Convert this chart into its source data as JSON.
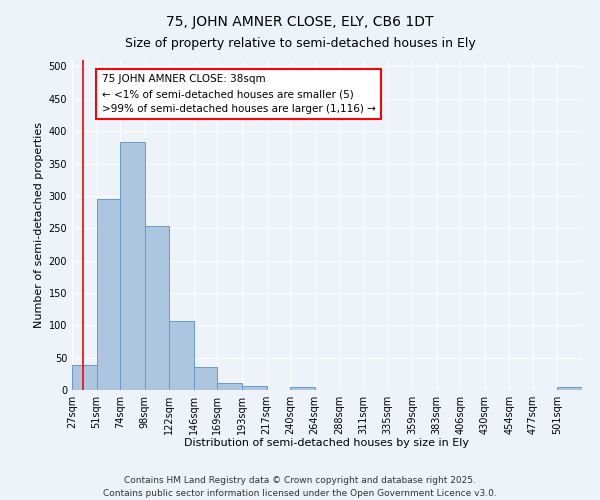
{
  "title": "75, JOHN AMNER CLOSE, ELY, CB6 1DT",
  "subtitle": "Size of property relative to semi-detached houses in Ely",
  "xlabel": "Distribution of semi-detached houses by size in Ely",
  "ylabel": "Number of semi-detached properties",
  "footer_line1": "Contains HM Land Registry data © Crown copyright and database right 2025.",
  "footer_line2": "Contains public sector information licensed under the Open Government Licence v3.0.",
  "annotation_line1": "75 JOHN AMNER CLOSE: 38sqm",
  "annotation_line2": "← <1% of semi-detached houses are smaller (5)",
  "annotation_line3": ">99% of semi-detached houses are larger (1,116) →",
  "bin_labels": [
    "27sqm",
    "51sqm",
    "74sqm",
    "98sqm",
    "122sqm",
    "146sqm",
    "169sqm",
    "193sqm",
    "217sqm",
    "240sqm",
    "264sqm",
    "288sqm",
    "311sqm",
    "335sqm",
    "359sqm",
    "383sqm",
    "406sqm",
    "430sqm",
    "454sqm",
    "477sqm",
    "501sqm"
  ],
  "bin_edges": [
    27,
    51,
    74,
    98,
    122,
    146,
    169,
    193,
    217,
    240,
    264,
    288,
    311,
    335,
    359,
    383,
    406,
    430,
    454,
    477,
    501,
    525
  ],
  "bar_heights": [
    38,
    295,
    383,
    254,
    107,
    36,
    11,
    6,
    0,
    5,
    0,
    0,
    0,
    0,
    0,
    0,
    0,
    0,
    0,
    0,
    4
  ],
  "bar_color": "#adc6e0",
  "bar_edgecolor": "#6699cc",
  "redline_x": 38,
  "ylim": [
    0,
    510
  ],
  "yticks": [
    0,
    50,
    100,
    150,
    200,
    250,
    300,
    350,
    400,
    450,
    500
  ],
  "background_color": "#eef2f9",
  "grid_color": "#ffffff",
  "title_fontsize": 10,
  "subtitle_fontsize": 9,
  "axis_label_fontsize": 8,
  "tick_fontsize": 7,
  "annotation_fontsize": 7.5,
  "footer_fontsize": 6.5
}
